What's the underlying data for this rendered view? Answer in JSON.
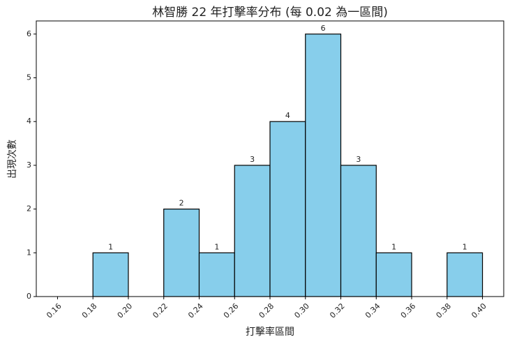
{
  "chart_data": {
    "type": "histogram",
    "title": "林智勝 22 年打擊率分布 (每 0.02 為一區間)",
    "x_label": "打擊率區間",
    "y_label": "出現次數",
    "bins": [
      0.16,
      0.18,
      0.2,
      0.22,
      0.24,
      0.26,
      0.28,
      0.3,
      0.32,
      0.34,
      0.36,
      0.38,
      0.4
    ],
    "values": [
      0,
      1,
      0,
      2,
      1,
      3,
      4,
      6,
      3,
      1,
      0,
      1
    ],
    "color": "#87ceeb",
    "edgecolor": "#000000",
    "xlim": [
      0.148,
      0.412
    ],
    "xticks": [
      0.16,
      0.18,
      {
        "value": 0.2,
        "label": "0.20"
      },
      0.22,
      0.24,
      0.26,
      0.28,
      {
        "value": 0.3,
        "label": "0.30"
      },
      0.32,
      0.34,
      0.36,
      0.38,
      {
        "value": 0.4,
        "label": "0.40"
      }
    ],
    "ylim": [
      0,
      6.3
    ],
    "yticks": [
      0,
      1,
      2,
      3,
      4,
      5,
      6
    ]
  }
}
